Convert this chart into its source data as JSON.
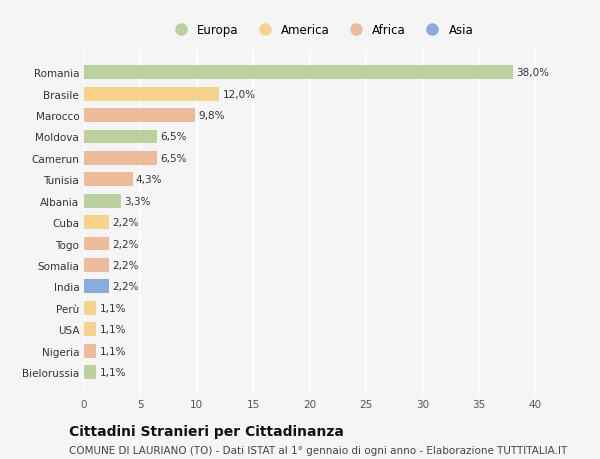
{
  "countries": [
    "Romania",
    "Brasile",
    "Marocco",
    "Moldova",
    "Camerun",
    "Tunisia",
    "Albania",
    "Cuba",
    "Togo",
    "Somalia",
    "India",
    "Perù",
    "USA",
    "Nigeria",
    "Bielorussia"
  ],
  "values": [
    38.0,
    12.0,
    9.8,
    6.5,
    6.5,
    4.3,
    3.3,
    2.2,
    2.2,
    2.2,
    2.2,
    1.1,
    1.1,
    1.1,
    1.1
  ],
  "labels": [
    "38,0%",
    "12,0%",
    "9,8%",
    "6,5%",
    "6,5%",
    "4,3%",
    "3,3%",
    "2,2%",
    "2,2%",
    "2,2%",
    "2,2%",
    "1,1%",
    "1,1%",
    "1,1%",
    "1,1%"
  ],
  "continents": [
    "Europa",
    "America",
    "Africa",
    "Europa",
    "Africa",
    "Africa",
    "Europa",
    "America",
    "Africa",
    "Africa",
    "Asia",
    "America",
    "America",
    "Africa",
    "Europa"
  ],
  "continent_colors": {
    "Europa": "#a8c57e",
    "America": "#f5c868",
    "Africa": "#e8a87c",
    "Asia": "#6495d4"
  },
  "legend_order": [
    "Europa",
    "America",
    "Africa",
    "Asia"
  ],
  "title": "Cittadini Stranieri per Cittadinanza",
  "subtitle": "COMUNE DI LAURIANO (TO) - Dati ISTAT al 1° gennaio di ogni anno - Elaborazione TUTTITALIA.IT",
  "xlim": [
    0,
    42
  ],
  "xticks": [
    0,
    5,
    10,
    15,
    20,
    25,
    30,
    35,
    40
  ],
  "background_color": "#f5f5f5",
  "grid_color": "#ffffff",
  "bar_alpha": 0.75,
  "title_fontsize": 10,
  "subtitle_fontsize": 7.5,
  "label_fontsize": 7.5,
  "tick_fontsize": 7.5,
  "legend_fontsize": 8.5
}
